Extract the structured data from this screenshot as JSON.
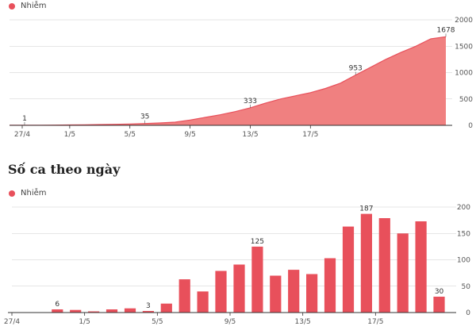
{
  "legend": {
    "top_label": "Nhiễm",
    "bottom_label": "Nhiễm"
  },
  "section_title": "Số ca theo ngày",
  "colors": {
    "area_fill": "#f08080",
    "line": "#e8505b",
    "bar": "#e8505b",
    "grid": "#cccccc",
    "axis": "#333333"
  },
  "chart_data": [
    {
      "type": "area",
      "name": "cumulative",
      "series": [
        {
          "name": "Nhiễm",
          "values": [
            1,
            1,
            3,
            5,
            8,
            11,
            15,
            19,
            25,
            35,
            45,
            60,
            100,
            150,
            200,
            260,
            333,
            420,
            500,
            560,
            620,
            700,
            800,
            953,
            1100,
            1250,
            1380,
            1500,
            1640,
            1678
          ]
        }
      ],
      "x_ticks": [
        "27/4",
        "1/5",
        "5/5",
        "9/5",
        "13/5",
        "17/5"
      ],
      "y_ticks": [
        "0",
        "500",
        "1000",
        "1500",
        "2000"
      ],
      "ylim": [
        0,
        2000
      ],
      "data_labels": [
        {
          "index": 1,
          "text": "1"
        },
        {
          "index": 9,
          "text": "35"
        },
        {
          "index": 16,
          "text": "333"
        },
        {
          "index": 23,
          "text": "953"
        },
        {
          "index": 29,
          "text": "1678"
        }
      ],
      "grid": true
    },
    {
      "type": "bar",
      "name": "daily",
      "series": [
        {
          "name": "Nhiễm",
          "values": [
            0,
            0,
            6,
            5,
            2,
            6,
            8,
            3,
            17,
            63,
            40,
            79,
            91,
            125,
            70,
            81,
            73,
            103,
            163,
            187,
            179,
            150,
            173,
            30
          ]
        }
      ],
      "x_ticks": [
        "27/4",
        "1/5",
        "5/5",
        "9/5",
        "13/5",
        "17/5"
      ],
      "y_ticks": [
        "0",
        "50",
        "100",
        "150",
        "200"
      ],
      "ylim": [
        0,
        200
      ],
      "data_labels": [
        {
          "index": 2,
          "text": "6"
        },
        {
          "index": 7,
          "text": "3"
        },
        {
          "index": 13,
          "text": "125"
        },
        {
          "index": 19,
          "text": "187"
        },
        {
          "index": 23,
          "text": "30"
        }
      ],
      "grid": true
    }
  ]
}
